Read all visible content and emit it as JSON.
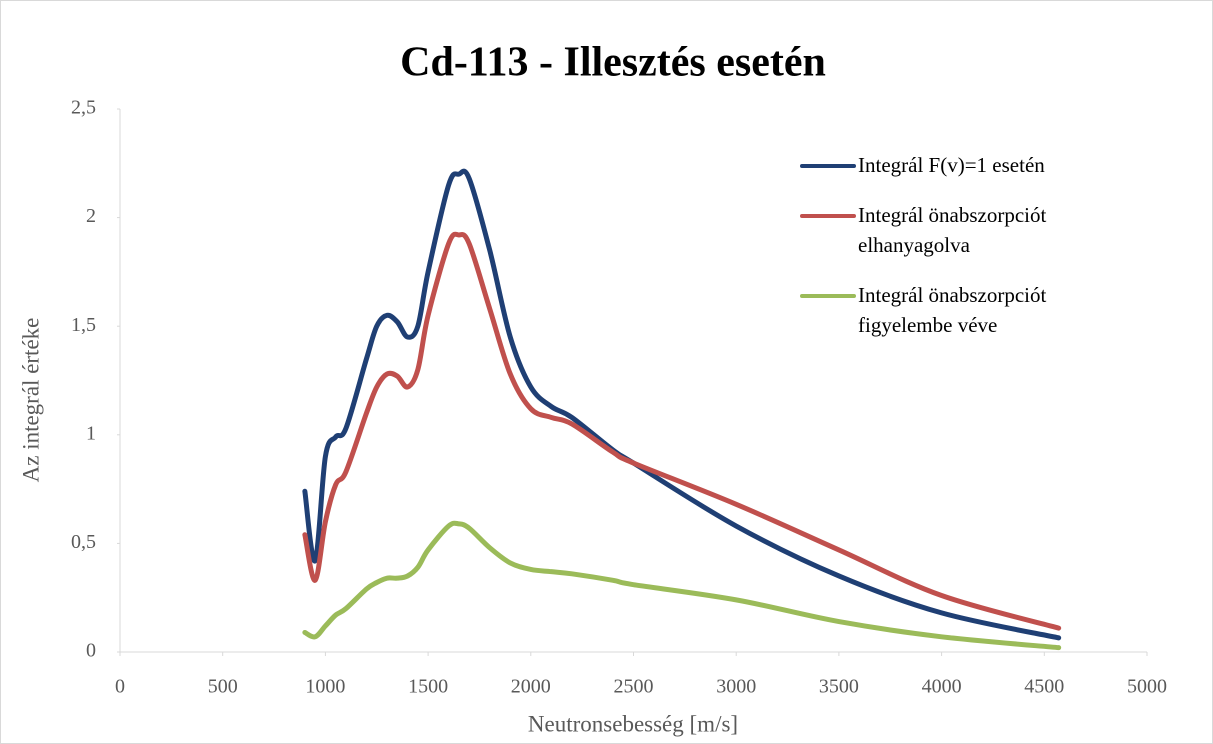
{
  "chart_data": {
    "type": "line",
    "title": "Cd-113 - Illesztés esetén",
    "xlabel": "Neutronsebesség [m/s]",
    "ylabel": "Az integrál értéke",
    "x": [
      900,
      950,
      1000,
      1050,
      1100,
      1200,
      1250,
      1300,
      1350,
      1400,
      1450,
      1500,
      1600,
      1650,
      1700,
      1800,
      1900,
      2000,
      2100,
      2200,
      2400,
      2500,
      3000,
      3500,
      4000,
      4570
    ],
    "series": [
      {
        "name": "Integrál F(v)=1 esetén",
        "color": "#1f3f74",
        "values": [
          0.74,
          0.42,
          0.9,
          0.99,
          1.03,
          1.35,
          1.5,
          1.55,
          1.52,
          1.45,
          1.5,
          1.75,
          2.15,
          2.2,
          2.18,
          1.85,
          1.45,
          1.22,
          1.13,
          1.08,
          0.93,
          0.87,
          0.58,
          0.35,
          0.18,
          0.065
        ]
      },
      {
        "name": "Integrál önabszorpciót elhanyagolva",
        "color": "#c0504d",
        "values": [
          0.54,
          0.33,
          0.6,
          0.77,
          0.83,
          1.1,
          1.22,
          1.28,
          1.27,
          1.22,
          1.3,
          1.55,
          1.88,
          1.92,
          1.88,
          1.58,
          1.28,
          1.12,
          1.08,
          1.05,
          0.92,
          0.87,
          0.68,
          0.47,
          0.26,
          0.11
        ]
      },
      {
        "name": "Integrál önabszorpciót figyelembe véve",
        "color": "#9bbb59",
        "values": [
          0.09,
          0.07,
          0.12,
          0.17,
          0.2,
          0.29,
          0.32,
          0.34,
          0.34,
          0.35,
          0.39,
          0.47,
          0.58,
          0.59,
          0.57,
          0.48,
          0.41,
          0.38,
          0.37,
          0.36,
          0.33,
          0.31,
          0.24,
          0.14,
          0.07,
          0.02
        ]
      }
    ],
    "xlim": [
      0,
      5000
    ],
    "xticks": [
      0,
      500,
      1000,
      1500,
      2000,
      2500,
      3000,
      3500,
      4000,
      4500,
      5000
    ],
    "ylim": [
      0,
      2.5
    ],
    "yticks": [
      0,
      {
        "value": 0.5,
        "label": "0,5"
      },
      1,
      {
        "value": 1.5,
        "label": "1,5"
      },
      2,
      {
        "value": 2.5,
        "label": "2,5"
      }
    ],
    "legend": "right"
  }
}
